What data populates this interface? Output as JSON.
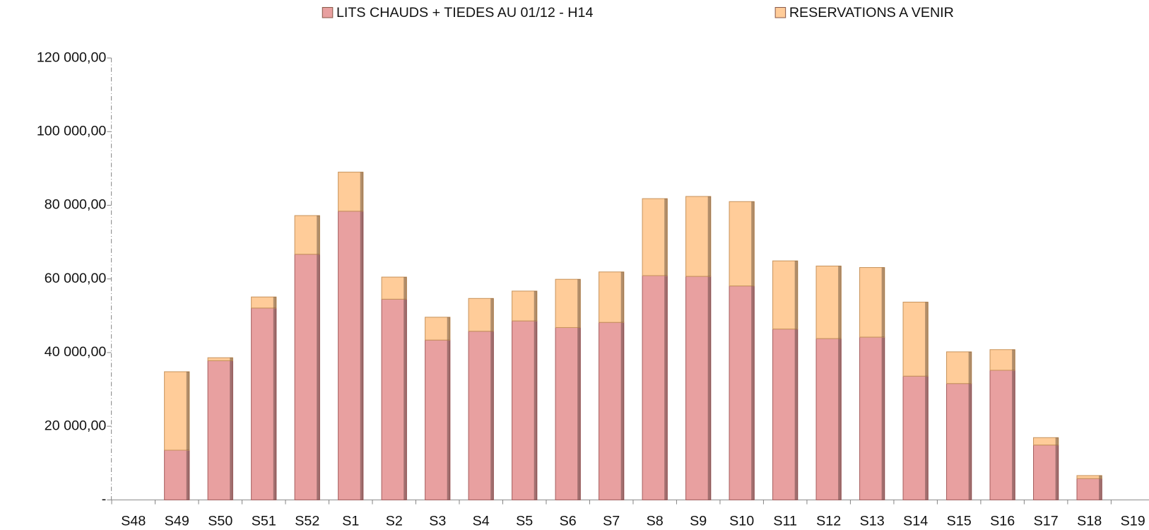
{
  "chart_data": {
    "type": "stacked_bar",
    "categories": [
      "S48",
      "S49",
      "S50",
      "S51",
      "S52",
      "S1",
      "S2",
      "S3",
      "S4",
      "S5",
      "S6",
      "S7",
      "S8",
      "S9",
      "S10",
      "S11",
      "S12",
      "S13",
      "S14",
      "S15",
      "S16",
      "S17",
      "S18",
      "S19"
    ],
    "series": [
      {
        "name": "LITS CHAUDS + TIEDES AU 01/12 - H14",
        "color": "#e8a0a0",
        "values": [
          null,
          13500,
          37800,
          52100,
          66700,
          78400,
          54500,
          43400,
          45800,
          48600,
          46800,
          48200,
          60900,
          60700,
          58100,
          46400,
          43800,
          44200,
          33600,
          31600,
          35200,
          14900,
          5800,
          null
        ]
      },
      {
        "name": "RESERVATIONS A VENIR",
        "color": "#ffcc99",
        "values": [
          null,
          21300,
          800,
          3000,
          10500,
          10600,
          6000,
          6200,
          8900,
          8100,
          13100,
          13700,
          20900,
          21700,
          22900,
          18500,
          19700,
          18900,
          20100,
          8600,
          5600,
          2000,
          800,
          null
        ]
      }
    ],
    "ylim": [
      0,
      120000
    ],
    "yticks": [
      {
        "value": 0,
        "label": "-"
      },
      {
        "value": 20000,
        "label": "20 000,00"
      },
      {
        "value": 40000,
        "label": "40 000,00"
      },
      {
        "value": 60000,
        "label": "60 000,00"
      },
      {
        "value": 80000,
        "label": "80 000,00"
      },
      {
        "value": 100000,
        "label": "100 000,00"
      },
      {
        "value": 120000,
        "label": "120 000,00"
      }
    ],
    "grid": false
  }
}
